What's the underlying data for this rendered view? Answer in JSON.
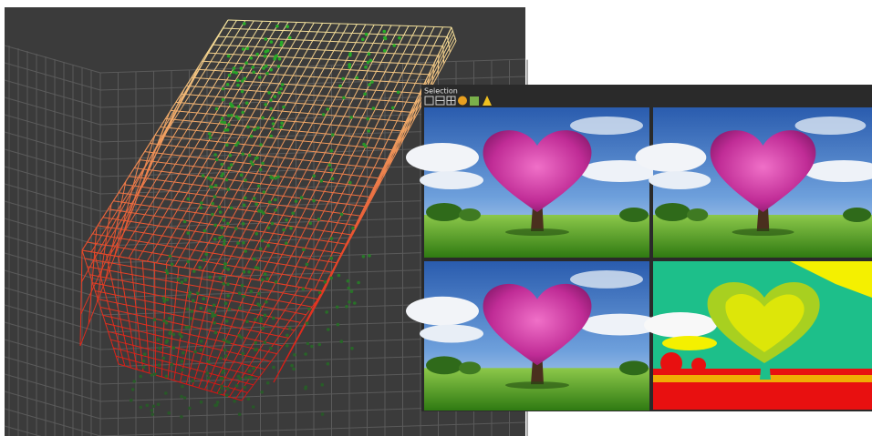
{
  "panel": {
    "title": "Selection"
  }
}
